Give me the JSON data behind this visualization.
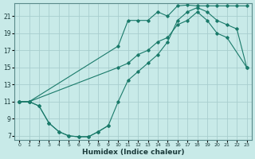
{
  "xlabel": "Humidex (Indice chaleur)",
  "bg_color": "#c8eae8",
  "grid_color": "#a8cece",
  "line_color": "#1a7a6a",
  "xlim": [
    -0.5,
    23.5
  ],
  "ylim": [
    6.5,
    22.5
  ],
  "yticks": [
    7,
    9,
    11,
    13,
    15,
    17,
    19,
    21
  ],
  "xticks": [
    0,
    1,
    2,
    3,
    4,
    5,
    6,
    7,
    8,
    9,
    10,
    11,
    12,
    13,
    14,
    15,
    16,
    17,
    18,
    19,
    20,
    21,
    22,
    23
  ],
  "line1_x": [
    0,
    1,
    2,
    3,
    4,
    5,
    6,
    7,
    8,
    9
  ],
  "line1_y": [
    11,
    11,
    10.5,
    8.5,
    7.5,
    7.0,
    6.9,
    6.9,
    7.5,
    8.2
  ],
  "line2_x": [
    0,
    1,
    2,
    3,
    4,
    5,
    6,
    7,
    8,
    9,
    10,
    11,
    12,
    13,
    14,
    15,
    16,
    17,
    18,
    19,
    20,
    21,
    22,
    23
  ],
  "line2_y": [
    11,
    11,
    10.5,
    8.5,
    7.5,
    7.0,
    6.9,
    6.9,
    7.5,
    8.2,
    11.0,
    13.5,
    14.5,
    15.5,
    16.5,
    18.0,
    20.5,
    21.5,
    22.0,
    21.5,
    20.5,
    20.0,
    19.5,
    15.0
  ],
  "line3_x": [
    0,
    1,
    10,
    11,
    12,
    13,
    14,
    15,
    16,
    17,
    18,
    19,
    20,
    21,
    22,
    23
  ],
  "line3_y": [
    11,
    11,
    17.5,
    20.5,
    20.5,
    20.5,
    21.5,
    21.0,
    22.2,
    22.3,
    22.2,
    22.2,
    22.2,
    22.2,
    22.2,
    22.2
  ],
  "line4_x": [
    0,
    1,
    10,
    11,
    12,
    13,
    14,
    15,
    16,
    17,
    18,
    19,
    20,
    21,
    23
  ],
  "line4_y": [
    11,
    11,
    15.0,
    15.5,
    16.5,
    17.0,
    18.0,
    18.5,
    20.0,
    20.5,
    21.5,
    20.5,
    19.0,
    18.5,
    15.0
  ]
}
